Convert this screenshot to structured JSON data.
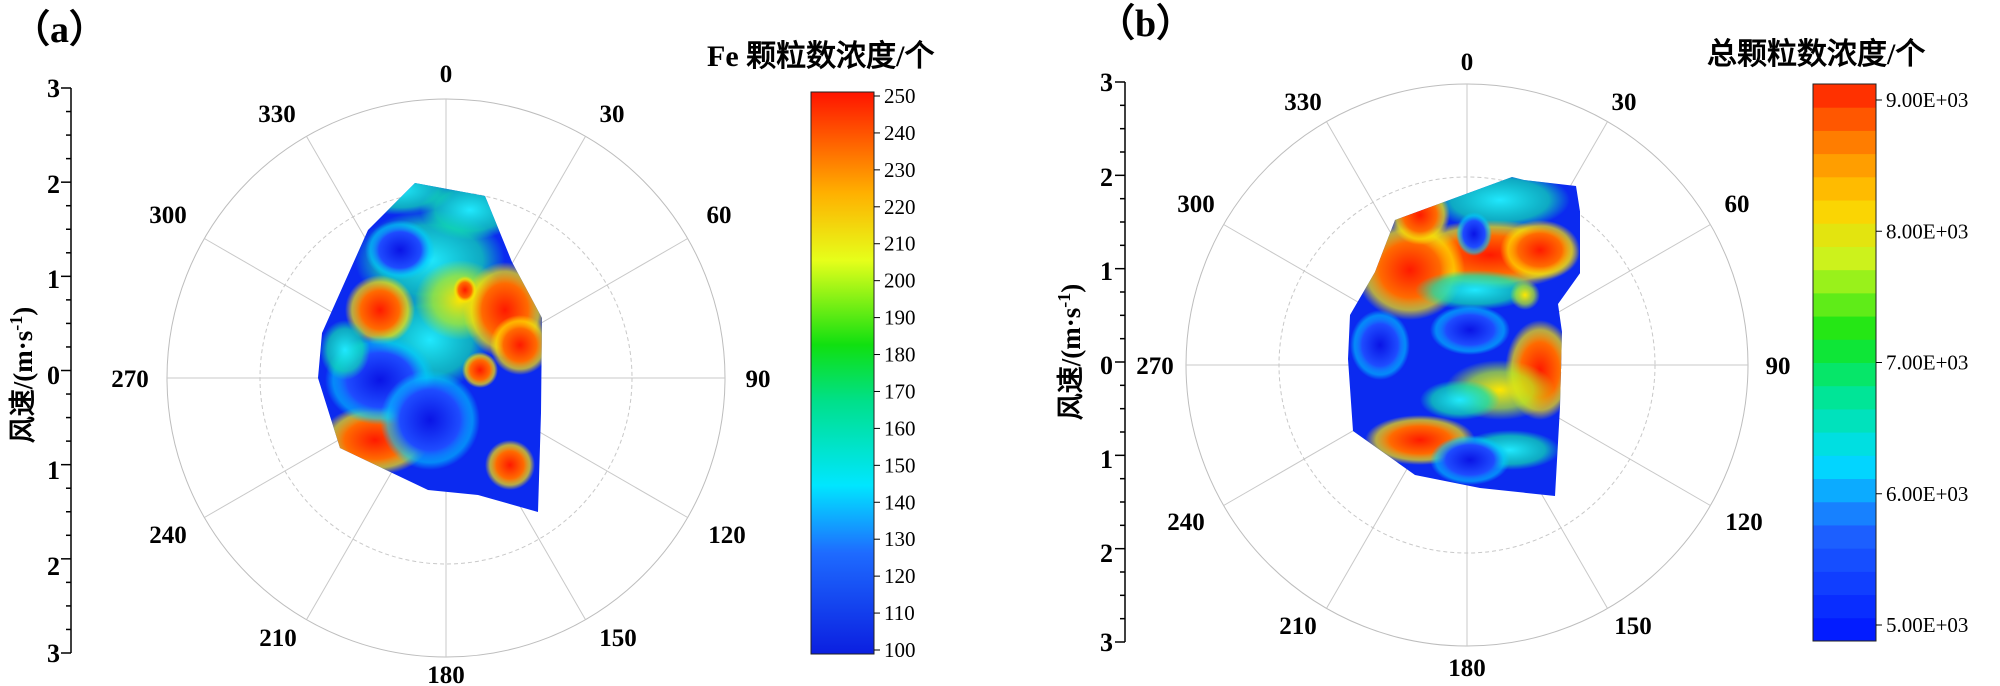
{
  "chart_data": [
    {
      "type": "polar-contour",
      "panel_label": "（a）",
      "colorbar_title": "Fe 颗粒数浓度/个",
      "colorbar_ticks": [
        "250",
        "240",
        "230",
        "220",
        "210",
        "200",
        "190",
        "180",
        "170",
        "160",
        "150",
        "140",
        "130",
        "120",
        "110",
        "100"
      ],
      "colorbar_range": [
        100,
        250
      ],
      "angle_labels": [
        "0",
        "30",
        "60",
        "90",
        "120",
        "150",
        "180",
        "210",
        "240",
        "270",
        "300",
        "330"
      ],
      "radial_axis_title": "风速/(m·s",
      "radial_axis_title_sup": "-1",
      "radial_axis_title_end": ")",
      "radial_ticks": [
        "3",
        "2",
        "1",
        "0",
        "1",
        "2",
        "3"
      ],
      "rlim": [
        0,
        3
      ],
      "colormap": "rainbow (blue → cyan → green → yellow → red)"
    },
    {
      "type": "polar-contour",
      "panel_label": "（b）",
      "colorbar_title": "总颗粒数浓度/个",
      "colorbar_ticks": [
        "9.00E+03",
        "8.00E+03",
        "7.00E+03",
        "6.00E+03",
        "5.00E+03"
      ],
      "colorbar_range": [
        5000,
        9000
      ],
      "angle_labels": [
        "0",
        "30",
        "60",
        "90",
        "120",
        "150",
        "180",
        "210",
        "240",
        "270",
        "300",
        "330"
      ],
      "radial_axis_title": "风速/(m·s",
      "radial_axis_title_sup": "-1",
      "radial_axis_title_end": ")",
      "radial_ticks": [
        "3",
        "2",
        "1",
        "0",
        "1",
        "2",
        "3"
      ],
      "rlim": [
        0,
        3
      ],
      "colormap": "stepped rainbow (blue → cyan → green → yellow → red)"
    }
  ]
}
